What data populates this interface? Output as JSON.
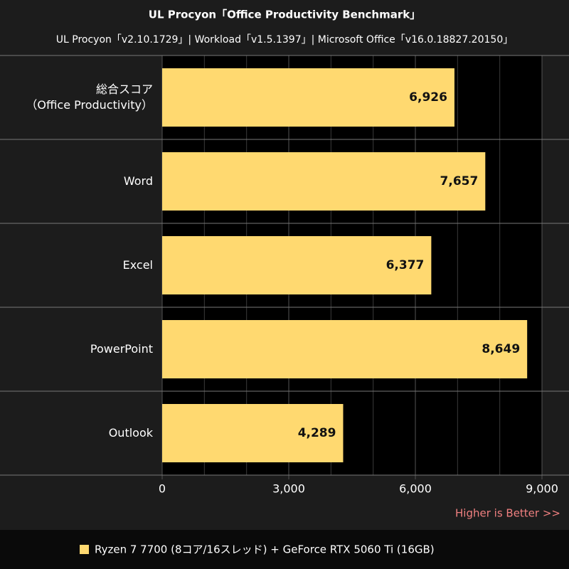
{
  "chart_data": {
    "type": "bar",
    "orientation": "horizontal",
    "title": "UL Procyon「Office Productivity Benchmark」",
    "subtitle": "UL Procyon「v2.10.1729」| Workload「v1.5.1397」| Microsoft Office「v16.0.18827.20150」",
    "categories": [
      "総合スコア\n（Office Productivity）",
      "Word",
      "Excel",
      "PowerPoint",
      "Outlook"
    ],
    "series": [
      {
        "name": "Ryzen 7 7700 (8コア/16スレッド) + GeForce RTX 5060 Ti (16GB)",
        "color": "#ffd970",
        "values": [
          6926,
          7657,
          6377,
          8649,
          4289
        ],
        "value_labels": [
          "6,926",
          "7,657",
          "6,377",
          "8,649",
          "4,289"
        ]
      }
    ],
    "xlim": [
      0,
      9000
    ],
    "xticks": [
      0,
      {
        "value": 3000,
        "label": "3,000"
      },
      {
        "value": 6000,
        "label": "6,000"
      },
      {
        "value": 9000,
        "label": "9,000"
      }
    ],
    "grid_step": 1000,
    "annotation": "Higher is Better >>",
    "annotation_color": "#f08080"
  }
}
